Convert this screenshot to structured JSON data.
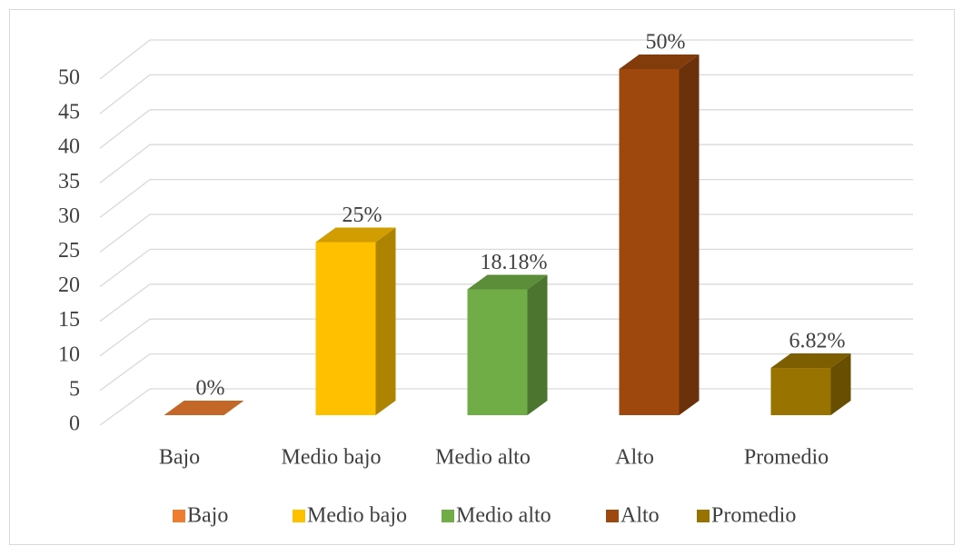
{
  "chart_data": {
    "type": "bar3d",
    "categories": [
      "Bajo",
      "Medio bajo",
      "Medio alto",
      "Alto",
      "Promedio"
    ],
    "values": [
      0,
      25,
      18.18,
      50,
      6.82
    ],
    "value_labels": [
      "0%",
      "25%",
      "18.18%",
      "50%",
      "6.82%"
    ],
    "colors": [
      "#ed7d31",
      "#ffc000",
      "#70ad47",
      "#9e480e",
      "#997300"
    ],
    "ylim": [
      0,
      50
    ],
    "yticks": [
      0,
      5,
      10,
      15,
      20,
      25,
      30,
      35,
      40,
      45,
      50
    ],
    "grid": true,
    "legend": "bottom"
  }
}
